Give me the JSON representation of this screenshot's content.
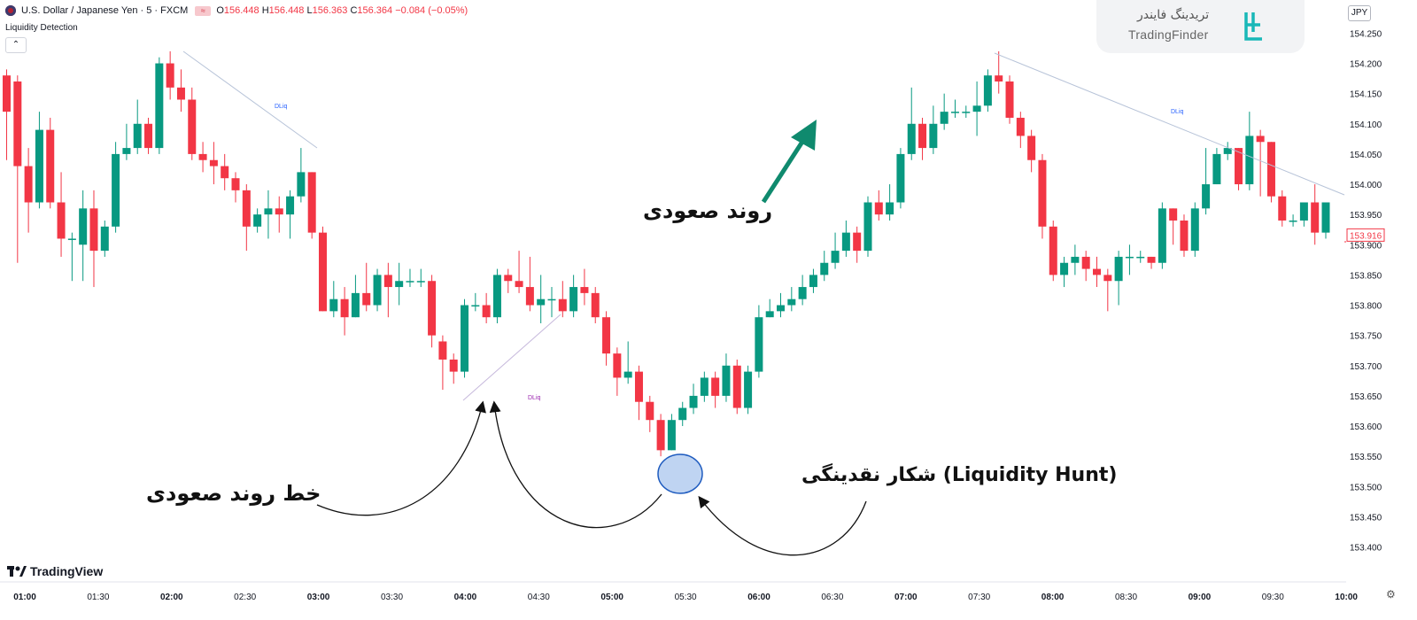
{
  "header": {
    "symbol": "U.S. Dollar / Japanese Yen · 5 · FXCM",
    "o_label": "O",
    "o": "156.448",
    "h_label": "H",
    "h": "156.448",
    "l_label": "L",
    "l": "156.363",
    "c_label": "C",
    "c": "156.364",
    "change": "−0.084 (−0.05%)"
  },
  "indicator": {
    "name": "Liquidity Detection",
    "collapse_icon": "chevron-up-icon"
  },
  "brand": {
    "fa": "تریدینگ فایندر",
    "en": "TradingFinder"
  },
  "platform": {
    "name": "TradingView"
  },
  "currency": "JPY",
  "colors": {
    "up": "#089981",
    "down": "#f23645",
    "arrow": "#0f8a6e",
    "ellipse_fill": "#a9c6ee",
    "ellipse_stroke": "#1e5bbf",
    "dliq_blue": "#2962ff",
    "dliq_purple": "#9c27b0"
  },
  "annotations": {
    "uptrend": "روند صعودی",
    "uptrend_line": "خط روند صعودی",
    "liquidity_hunt": "شکار نقدینگی (Liquidity Hunt)"
  },
  "chart_data": {
    "type": "candlestick",
    "title": "",
    "ylim": [
      153.37,
      154.255
    ],
    "y_ticks": [
      "154.250",
      "154.200",
      "154.150",
      "154.100",
      "154.050",
      "154.000",
      "153.950",
      "153.900",
      "153.850",
      "153.800",
      "153.750",
      "153.700",
      "153.650",
      "153.600",
      "153.550",
      "153.500",
      "153.450",
      "153.400"
    ],
    "x_ticks": [
      "01:00",
      "01:30",
      "02:00",
      "02:30",
      "03:00",
      "03:30",
      "04:00",
      "04:30",
      "05:00",
      "05:30",
      "06:00",
      "06:30",
      "07:00",
      "07:30",
      "08:00",
      "08:30",
      "09:00",
      "09:30",
      "10:00"
    ],
    "last_price": "153.916",
    "dliq_labels": [
      "DLiq",
      "DLiq",
      "DLiq"
    ],
    "candles": [
      [
        154.18,
        154.12,
        154.19,
        154.04
      ],
      [
        154.17,
        154.03,
        154.18,
        153.87
      ],
      [
        154.03,
        153.97,
        154.06,
        153.92
      ],
      [
        153.97,
        154.09,
        154.12,
        153.96
      ],
      [
        154.09,
        153.97,
        154.11,
        153.96
      ],
      [
        153.97,
        153.91,
        154.02,
        153.88
      ],
      [
        153.91,
        153.91,
        153.92,
        153.84
      ],
      [
        153.9,
        153.96,
        153.99,
        153.84
      ],
      [
        153.96,
        153.89,
        153.99,
        153.83
      ],
      [
        153.89,
        153.93,
        153.94,
        153.88
      ],
      [
        153.93,
        154.05,
        154.07,
        153.92
      ],
      [
        154.05,
        154.06,
        154.1,
        154.04
      ],
      [
        154.06,
        154.1,
        154.14,
        154.05
      ],
      [
        154.1,
        154.06,
        154.11,
        154.05
      ],
      [
        154.06,
        154.2,
        154.21,
        154.05
      ],
      [
        154.2,
        154.16,
        154.22,
        154.14
      ],
      [
        154.16,
        154.14,
        154.19,
        154.12
      ],
      [
        154.14,
        154.05,
        154.16,
        154.04
      ],
      [
        154.05,
        154.04,
        154.07,
        154.02
      ],
      [
        154.04,
        154.03,
        154.07,
        154.0
      ],
      [
        154.03,
        154.01,
        154.05,
        153.99
      ],
      [
        154.01,
        153.99,
        154.02,
        153.97
      ],
      [
        153.99,
        153.93,
        154.0,
        153.89
      ],
      [
        153.93,
        153.95,
        153.96,
        153.92
      ],
      [
        153.95,
        153.96,
        153.99,
        153.91
      ],
      [
        153.96,
        153.95,
        153.98,
        153.92
      ],
      [
        153.95,
        153.98,
        153.99,
        153.91
      ],
      [
        153.98,
        154.02,
        154.06,
        153.97
      ],
      [
        154.02,
        153.92,
        154.02,
        153.91
      ],
      [
        153.92,
        153.79,
        153.93,
        153.79
      ],
      [
        153.79,
        153.81,
        153.84,
        153.78
      ],
      [
        153.81,
        153.78,
        153.83,
        153.75
      ],
      [
        153.78,
        153.82,
        153.85,
        153.78
      ],
      [
        153.82,
        153.8,
        153.87,
        153.79
      ],
      [
        153.8,
        153.85,
        153.86,
        153.79
      ],
      [
        153.85,
        153.83,
        153.87,
        153.78
      ],
      [
        153.83,
        153.84,
        153.87,
        153.8
      ],
      [
        153.84,
        153.84,
        153.86,
        153.83
      ],
      [
        153.84,
        153.84,
        153.86,
        153.83
      ],
      [
        153.84,
        153.75,
        153.85,
        153.73
      ],
      [
        153.74,
        153.71,
        153.75,
        153.66
      ],
      [
        153.71,
        153.69,
        153.72,
        153.67
      ],
      [
        153.69,
        153.8,
        153.81,
        153.68
      ],
      [
        153.8,
        153.8,
        153.82,
        153.79
      ],
      [
        153.8,
        153.78,
        153.82,
        153.77
      ],
      [
        153.78,
        153.85,
        153.86,
        153.77
      ],
      [
        153.85,
        153.84,
        153.86,
        153.82
      ],
      [
        153.84,
        153.83,
        153.89,
        153.82
      ],
      [
        153.83,
        153.8,
        153.88,
        153.79
      ],
      [
        153.8,
        153.81,
        153.85,
        153.77
      ],
      [
        153.81,
        153.81,
        153.83,
        153.78
      ],
      [
        153.81,
        153.79,
        153.84,
        153.78
      ],
      [
        153.79,
        153.83,
        153.85,
        153.78
      ],
      [
        153.83,
        153.82,
        153.86,
        153.8
      ],
      [
        153.82,
        153.78,
        153.83,
        153.77
      ],
      [
        153.78,
        153.72,
        153.79,
        153.7
      ],
      [
        153.72,
        153.68,
        153.73,
        153.65
      ],
      [
        153.68,
        153.69,
        153.74,
        153.67
      ],
      [
        153.69,
        153.64,
        153.7,
        153.61
      ],
      [
        153.64,
        153.61,
        153.65,
        153.59
      ],
      [
        153.61,
        153.56,
        153.62,
        153.55
      ],
      [
        153.56,
        153.61,
        153.62,
        153.56
      ],
      [
        153.61,
        153.63,
        153.64,
        153.6
      ],
      [
        153.63,
        153.65,
        153.67,
        153.62
      ],
      [
        153.65,
        153.68,
        153.69,
        153.64
      ],
      [
        153.68,
        153.65,
        153.69,
        153.63
      ],
      [
        153.65,
        153.7,
        153.72,
        153.64
      ],
      [
        153.7,
        153.63,
        153.71,
        153.62
      ],
      [
        153.63,
        153.69,
        153.7,
        153.62
      ],
      [
        153.69,
        153.78,
        153.8,
        153.68
      ],
      [
        153.78,
        153.79,
        153.81,
        153.78
      ],
      [
        153.79,
        153.8,
        153.82,
        153.78
      ],
      [
        153.8,
        153.81,
        153.83,
        153.79
      ],
      [
        153.81,
        153.83,
        153.85,
        153.8
      ],
      [
        153.83,
        153.85,
        153.86,
        153.82
      ],
      [
        153.85,
        153.87,
        153.89,
        153.84
      ],
      [
        153.87,
        153.89,
        153.92,
        153.86
      ],
      [
        153.89,
        153.92,
        153.94,
        153.88
      ],
      [
        153.92,
        153.89,
        153.93,
        153.87
      ],
      [
        153.89,
        153.97,
        153.98,
        153.88
      ],
      [
        153.97,
        153.95,
        153.99,
        153.94
      ],
      [
        153.95,
        153.97,
        154.0,
        153.94
      ],
      [
        153.97,
        154.05,
        154.06,
        153.96
      ],
      [
        154.05,
        154.1,
        154.16,
        154.04
      ],
      [
        154.1,
        154.06,
        154.11,
        154.04
      ],
      [
        154.06,
        154.1,
        154.13,
        154.05
      ],
      [
        154.1,
        154.12,
        154.15,
        154.09
      ],
      [
        154.12,
        154.12,
        154.14,
        154.11
      ],
      [
        154.12,
        154.12,
        154.13,
        154.11
      ],
      [
        154.12,
        154.13,
        154.17,
        154.08
      ],
      [
        154.13,
        154.18,
        154.19,
        154.12
      ],
      [
        154.18,
        154.17,
        154.22,
        154.15
      ],
      [
        154.17,
        154.11,
        154.18,
        154.1
      ],
      [
        154.11,
        154.08,
        154.12,
        154.06
      ],
      [
        154.08,
        154.04,
        154.09,
        154.02
      ],
      [
        154.04,
        153.93,
        154.05,
        153.91
      ],
      [
        153.93,
        153.85,
        153.94,
        153.84
      ],
      [
        153.85,
        153.87,
        153.88,
        153.83
      ],
      [
        153.87,
        153.88,
        153.9,
        153.85
      ],
      [
        153.88,
        153.86,
        153.89,
        153.84
      ],
      [
        153.86,
        153.85,
        153.88,
        153.83
      ],
      [
        153.85,
        153.84,
        153.86,
        153.79
      ],
      [
        153.84,
        153.88,
        153.89,
        153.8
      ],
      [
        153.88,
        153.88,
        153.9,
        153.85
      ],
      [
        153.88,
        153.88,
        153.89,
        153.87
      ],
      [
        153.88,
        153.87,
        153.88,
        153.86
      ],
      [
        153.87,
        153.96,
        153.97,
        153.86
      ],
      [
        153.96,
        153.94,
        153.96,
        153.9
      ],
      [
        153.94,
        153.89,
        153.95,
        153.88
      ],
      [
        153.89,
        153.96,
        153.97,
        153.88
      ],
      [
        153.96,
        154.0,
        154.06,
        153.95
      ],
      [
        154.0,
        154.05,
        154.06,
        154.0
      ],
      [
        154.05,
        154.06,
        154.07,
        154.04
      ],
      [
        154.06,
        154.0,
        154.06,
        153.99
      ],
      [
        154.0,
        154.08,
        154.12,
        153.99
      ],
      [
        154.08,
        154.07,
        154.09,
        153.98
      ],
      [
        154.07,
        153.98,
        154.07,
        153.97
      ],
      [
        153.98,
        153.94,
        153.99,
        153.93
      ],
      [
        153.94,
        153.94,
        153.95,
        153.93
      ],
      [
        153.94,
        153.97,
        153.97,
        153.93
      ],
      [
        153.97,
        153.92,
        154.0,
        153.9
      ],
      [
        153.92,
        153.97,
        153.97,
        153.91
      ]
    ]
  }
}
